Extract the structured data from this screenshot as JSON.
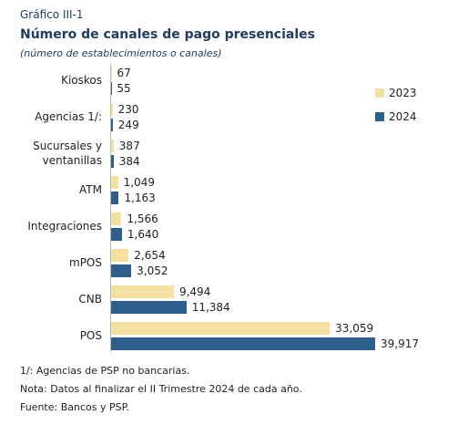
{
  "chart_data": {
    "type": "bar",
    "orientation": "horizontal",
    "kicker": "Gráfico III-1",
    "title": "Número de canales de pago presenciales",
    "subtitle": "(número de establecimientos o canales)",
    "categories": [
      "Kioskos",
      "Agencias 1/:",
      "Sucursales y\nventanillas",
      "ATM",
      "Integraciones",
      "mPOS",
      "CNB",
      "POS"
    ],
    "series": [
      {
        "name": "2023",
        "color": "#f7df9f",
        "values": [
          67,
          230,
          387,
          1049,
          1566,
          2654,
          9494,
          33059
        ],
        "value_labels": [
          "67",
          "230",
          "387",
          "1,049",
          "1,566",
          "2,654",
          "9,494",
          "33,059"
        ]
      },
      {
        "name": "2024",
        "color": "#2e5e8c",
        "values": [
          55,
          249,
          384,
          1163,
          1640,
          3052,
          11384,
          39917
        ],
        "value_labels": [
          "55",
          "249",
          "384",
          "1,163",
          "1,640",
          "3,052",
          "11,384",
          "39,917"
        ]
      }
    ],
    "legend": "right",
    "notes": [
      "1/: Agencias de PSP no bancarias.",
      "Nota: Datos al finalizar el II Trimestre 2024 de cada año.",
      "Fuente: Bancos y PSP."
    ]
  }
}
